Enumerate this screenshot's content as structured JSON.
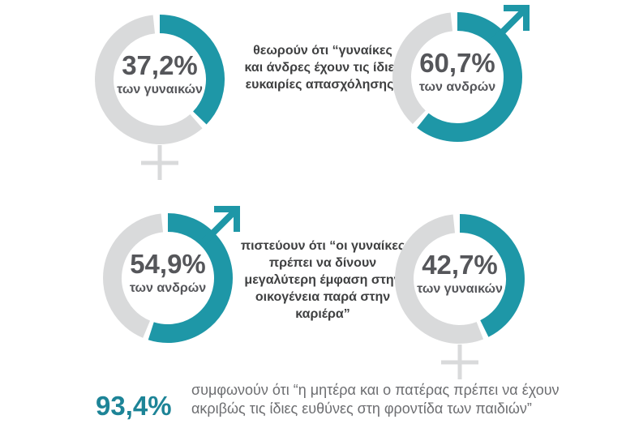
{
  "page": {
    "background": "#FFFFFF"
  },
  "chart_data": {
    "type": "donut",
    "unit": "%",
    "colors": {
      "filled": "#1E97A7",
      "track": "#D9DADB",
      "value_text": "#55565A",
      "statement_text": "#3F4041",
      "footer_value": "#1D8497",
      "footer_text": "#6D6E71"
    },
    "rows": [
      {
        "statement": "θεωρούν ότι “γυναίκες και άνδρες έχουν τις ίδιες ευκαιρίες απασχόλησης”",
        "statement_lines": [
          "θεωρούν ότι “γυναίκες",
          "και άνδρες έχουν τις ίδιες",
          "ευκαιρίες απασχόλησης”"
        ],
        "donuts": [
          {
            "value": 37.2,
            "value_label": "37,2%",
            "group": "των γυναικών",
            "symbol": "female"
          },
          {
            "value": 60.7,
            "value_label": "60,7%",
            "group": "των ανδρών",
            "symbol": "male"
          }
        ]
      },
      {
        "statement": "πιστεύουν ότι “οι γυναίκες πρέπει να δίνουν μεγαλύτερη έμφαση στην οικογένεια παρά στην καριέρα”",
        "statement_lines": [
          "πιστεύουν ότι “οι γυναίκες",
          "πρέπει να δίνουν",
          "μεγαλύτερη έμφαση στην",
          "οικογένεια παρά στην",
          "καριέρα”"
        ],
        "donuts": [
          {
            "value": 54.9,
            "value_label": "54,9%",
            "group": "των ανδρών",
            "symbol": "male"
          },
          {
            "value": 42.7,
            "value_label": "42,7%",
            "group": "των γυναικών",
            "symbol": "female"
          }
        ]
      }
    ],
    "footer": {
      "value": 93.4,
      "value_label": "93,4%",
      "statement": "συμφωνούν ότι “η μητέρα και ο πατέρας πρέπει να έχουν ακριβώς τις ίδιες ευθύνες στη φροντίδα των παιδιών”",
      "statement_lines": [
        "συμφωνούν ότι “η μητέρα και ο πατέρας πρέπει να έχουν",
        "ακριβώς τις ίδιες ευθύνες στη φροντίδα των παιδιών”"
      ]
    }
  }
}
